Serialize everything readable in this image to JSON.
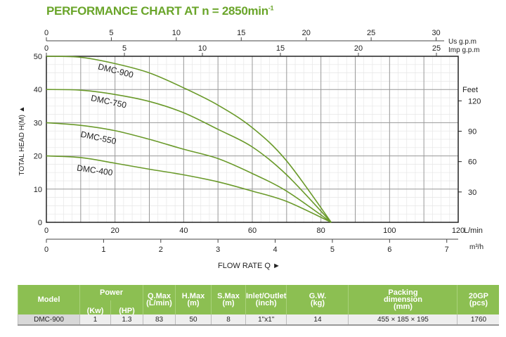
{
  "title": "PERFORMANCE CHART AT n = 2850min",
  "title_sup": "-1",
  "chart_data": {
    "type": "line",
    "xlabel": "FLOW RATE Q",
    "xlabel_arrow": "►",
    "ylabel": "TOTAL HEAD H(M)",
    "ylabel_arrow": "▲",
    "x_unit": "L/min",
    "xlim": [
      0,
      120
    ],
    "ylim": [
      0,
      50
    ],
    "x_ticks": [
      0,
      20,
      40,
      60,
      80,
      100,
      120
    ],
    "y_ticks": [
      0,
      10,
      20,
      30,
      40,
      50
    ],
    "grid": true,
    "secondary_axes": {
      "us_gpm": {
        "label": "Us g.p.m",
        "ticks": [
          0,
          5,
          10,
          15,
          20,
          25,
          30
        ]
      },
      "imp_gpm": {
        "label": "Imp g.p.m",
        "ticks": [
          0,
          5,
          10,
          15,
          20,
          25
        ]
      },
      "m3h": {
        "label": "m³/h",
        "ticks": [
          0,
          1,
          2,
          3,
          4,
          5,
          6,
          7
        ]
      },
      "feet": {
        "label": "Feet",
        "ticks": [
          30,
          60,
          90,
          120
        ]
      }
    },
    "series": [
      {
        "name": "DMC-900",
        "x": [
          0,
          10,
          20,
          30,
          40,
          50,
          60,
          70,
          83
        ],
        "y": [
          50,
          49.7,
          47.8,
          45,
          40.5,
          35.3,
          28.5,
          18.5,
          0
        ]
      },
      {
        "name": "DMC-750",
        "x": [
          0,
          10,
          20,
          30,
          40,
          50,
          60,
          70,
          83
        ],
        "y": [
          40,
          39.8,
          38.5,
          36.4,
          33,
          28,
          22.7,
          14.3,
          0
        ]
      },
      {
        "name": "DMC-550",
        "x": [
          0,
          10,
          20,
          30,
          40,
          50,
          60,
          70,
          83
        ],
        "y": [
          30,
          29.2,
          27.6,
          25,
          22,
          19.2,
          14.7,
          9.4,
          0
        ]
      },
      {
        "name": "DMC-400",
        "x": [
          0,
          10,
          20,
          30,
          40,
          50,
          60,
          70,
          83
        ],
        "y": [
          20,
          19.5,
          17.8,
          16,
          14.3,
          12.2,
          9.4,
          6.3,
          0
        ]
      }
    ],
    "line_color": "#6a9a2a"
  },
  "table": {
    "headers": {
      "model": "Model",
      "power": "Power",
      "kw": "(Kw)",
      "hp": "(HP)",
      "qmax": "Q.Max",
      "qmax_u": "(L/min)",
      "hmax": "H.Max",
      "hmax_u": "(m)",
      "smax": "S.Max",
      "smax_u": "(m)",
      "inlet": "Inlet/Outlet",
      "inlet_u": "(inch)",
      "gw": "G.W.",
      "gw_u": "(kg)",
      "pack": "Packing",
      "pack2": "dimension",
      "pack_u": "(mm)",
      "gp": "20GP",
      "gp_u": "(pcs)"
    },
    "row": {
      "model": "DMC-900",
      "kw": "1",
      "hp": "1.3",
      "qmax": "83",
      "hmax": "50",
      "smax": "8",
      "inlet": "1\"x1\"",
      "gw": "14",
      "pack": "455 × 185 × 195",
      "gp": "1760"
    }
  }
}
